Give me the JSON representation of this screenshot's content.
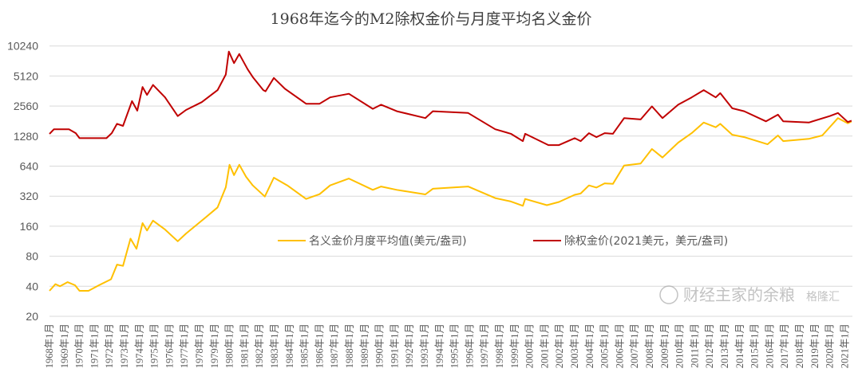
{
  "chart_data": {
    "type": "line",
    "title": "1968年迄今的M2除权金价与月度平均名义金价",
    "xlabel": "",
    "ylabel": "",
    "y_scale": "log2",
    "ylim": [
      20,
      10240
    ],
    "xlim": [
      1968,
      2021.5
    ],
    "grid": true,
    "legend_position": "center",
    "yticks": [
      "20",
      "40",
      "80",
      "160",
      "320",
      "640",
      "1280",
      "2560",
      "5120",
      "10240"
    ],
    "ytick_values": [
      20,
      40,
      80,
      160,
      320,
      640,
      1280,
      2560,
      5120,
      10240
    ],
    "xticks": [
      "1968年1月",
      "1969年1月",
      "1970年1月",
      "1971年1月",
      "1972年1月",
      "1973年1月",
      "1974年1月",
      "1975年1月",
      "1976年1月",
      "1977年1月",
      "1978年1月",
      "1979年1月",
      "1980年1月",
      "1981年1月",
      "1982年1月",
      "1983年1月",
      "1984年1月",
      "1985年1月",
      "1986年1月",
      "1987年1月",
      "1988年1月",
      "1989年1月",
      "1990年1月",
      "1991年1月",
      "1992年1月",
      "1993年1月",
      "1994年1月",
      "1995年1月",
      "1996年1月",
      "1997年1月",
      "1998年1月",
      "1999年1月",
      "2000年1月",
      "2001年1月",
      "2002年1月",
      "2003年1月",
      "2004年1月",
      "2005年1月",
      "2006年1月",
      "2007年1月",
      "2008年1月",
      "2009年1月",
      "2010年1月",
      "2011年1月",
      "2012年1月",
      "2013年1月",
      "2014年1月",
      "2015年1月",
      "2016年1月",
      "2017年1月",
      "2018年1月",
      "2019年1月",
      "2020年1月",
      "2021年1月"
    ],
    "series": [
      {
        "name": "名义金价月度平均值(美元/盎司)",
        "color": "#FFC000",
        "points": [
          [
            1968.0,
            36
          ],
          [
            1968.4,
            42
          ],
          [
            1968.7,
            40
          ],
          [
            1969.2,
            44
          ],
          [
            1969.7,
            41
          ],
          [
            1970.0,
            36
          ],
          [
            1970.6,
            36
          ],
          [
            1971.3,
            41
          ],
          [
            1972.1,
            47
          ],
          [
            1972.5,
            66
          ],
          [
            1972.9,
            64
          ],
          [
            1973.4,
            120
          ],
          [
            1973.8,
            95
          ],
          [
            1974.2,
            172
          ],
          [
            1974.5,
            145
          ],
          [
            1974.9,
            182
          ],
          [
            1975.7,
            148
          ],
          [
            1976.55,
            113
          ],
          [
            1977.1,
            135
          ],
          [
            1978.15,
            182
          ],
          [
            1979.2,
            247
          ],
          [
            1979.75,
            393
          ],
          [
            1980.0,
            660
          ],
          [
            1980.3,
            520
          ],
          [
            1980.65,
            660
          ],
          [
            1981.1,
            500
          ],
          [
            1981.55,
            410
          ],
          [
            1982.35,
            317
          ],
          [
            1982.95,
            490
          ],
          [
            1983.85,
            410
          ],
          [
            1985.1,
            300
          ],
          [
            1986.0,
            335
          ],
          [
            1986.7,
            410
          ],
          [
            1987.95,
            480
          ],
          [
            1989.55,
            370
          ],
          [
            1990.1,
            400
          ],
          [
            1991.15,
            370
          ],
          [
            1993.05,
            333
          ],
          [
            1993.55,
            380
          ],
          [
            1995.9,
            400
          ],
          [
            1997.7,
            306
          ],
          [
            1998.75,
            283
          ],
          [
            1999.55,
            256
          ],
          [
            1999.7,
            300
          ],
          [
            2001.15,
            260
          ],
          [
            2001.95,
            280
          ],
          [
            2003.0,
            330
          ],
          [
            2003.4,
            340
          ],
          [
            2003.95,
            410
          ],
          [
            2004.45,
            390
          ],
          [
            2005.0,
            430
          ],
          [
            2005.55,
            425
          ],
          [
            2006.3,
            650
          ],
          [
            2007.4,
            680
          ],
          [
            2008.15,
            950
          ],
          [
            2008.85,
            780
          ],
          [
            2009.9,
            1100
          ],
          [
            2010.8,
            1370
          ],
          [
            2011.6,
            1750
          ],
          [
            2012.4,
            1570
          ],
          [
            2012.7,
            1700
          ],
          [
            2013.5,
            1320
          ],
          [
            2014.3,
            1250
          ],
          [
            2015.85,
            1060
          ],
          [
            2016.55,
            1300
          ],
          [
            2016.9,
            1140
          ],
          [
            2018.6,
            1200
          ],
          [
            2019.5,
            1300
          ],
          [
            2020.55,
            1940
          ],
          [
            2021.2,
            1720
          ],
          [
            2021.45,
            1800
          ]
        ]
      },
      {
        "name": "除权金价(2021美元，美元/盎司)",
        "color": "#C00000",
        "points": [
          [
            1968.0,
            1345
          ],
          [
            1968.3,
            1500
          ],
          [
            1969.3,
            1500
          ],
          [
            1969.75,
            1370
          ],
          [
            1970.0,
            1220
          ],
          [
            1971.8,
            1220
          ],
          [
            1972.15,
            1370
          ],
          [
            1972.5,
            1700
          ],
          [
            1972.9,
            1620
          ],
          [
            1973.5,
            2870
          ],
          [
            1973.85,
            2300
          ],
          [
            1974.2,
            3970
          ],
          [
            1974.5,
            3310
          ],
          [
            1974.9,
            4170
          ],
          [
            1975.7,
            3130
          ],
          [
            1976.55,
            2030
          ],
          [
            1977.1,
            2340
          ],
          [
            1978.15,
            2800
          ],
          [
            1979.2,
            3700
          ],
          [
            1979.75,
            5300
          ],
          [
            1979.95,
            9000
          ],
          [
            1980.3,
            6900
          ],
          [
            1980.65,
            8500
          ],
          [
            1981.2,
            6000
          ],
          [
            1981.55,
            5000
          ],
          [
            1982.25,
            3700
          ],
          [
            1982.4,
            3600
          ],
          [
            1982.95,
            4900
          ],
          [
            1983.7,
            3800
          ],
          [
            1985.1,
            2700
          ],
          [
            1986.0,
            2700
          ],
          [
            1986.7,
            3130
          ],
          [
            1987.95,
            3400
          ],
          [
            1989.55,
            2400
          ],
          [
            1990.1,
            2640
          ],
          [
            1991.15,
            2270
          ],
          [
            1993.05,
            1940
          ],
          [
            1993.55,
            2270
          ],
          [
            1995.9,
            2180
          ],
          [
            1997.7,
            1500
          ],
          [
            1998.75,
            1350
          ],
          [
            1999.55,
            1140
          ],
          [
            1999.7,
            1350
          ],
          [
            2001.25,
            1040
          ],
          [
            2001.95,
            1040
          ],
          [
            2003.0,
            1220
          ],
          [
            2003.4,
            1140
          ],
          [
            2003.95,
            1370
          ],
          [
            2004.45,
            1250
          ],
          [
            2005.0,
            1370
          ],
          [
            2005.55,
            1350
          ],
          [
            2006.3,
            1940
          ],
          [
            2007.4,
            1880
          ],
          [
            2008.15,
            2540
          ],
          [
            2008.85,
            1940
          ],
          [
            2009.9,
            2640
          ],
          [
            2010.8,
            3130
          ],
          [
            2011.6,
            3700
          ],
          [
            2012.4,
            3130
          ],
          [
            2012.7,
            3450
          ],
          [
            2013.5,
            2430
          ],
          [
            2014.3,
            2270
          ],
          [
            2015.75,
            1800
          ],
          [
            2016.55,
            2100
          ],
          [
            2016.9,
            1800
          ],
          [
            2018.6,
            1750
          ],
          [
            2020.0,
            2030
          ],
          [
            2020.55,
            2180
          ],
          [
            2021.2,
            1770
          ],
          [
            2021.45,
            1830
          ]
        ]
      }
    ]
  },
  "watermark": {
    "account": "财经主家的余粮",
    "source": "格隆汇"
  }
}
